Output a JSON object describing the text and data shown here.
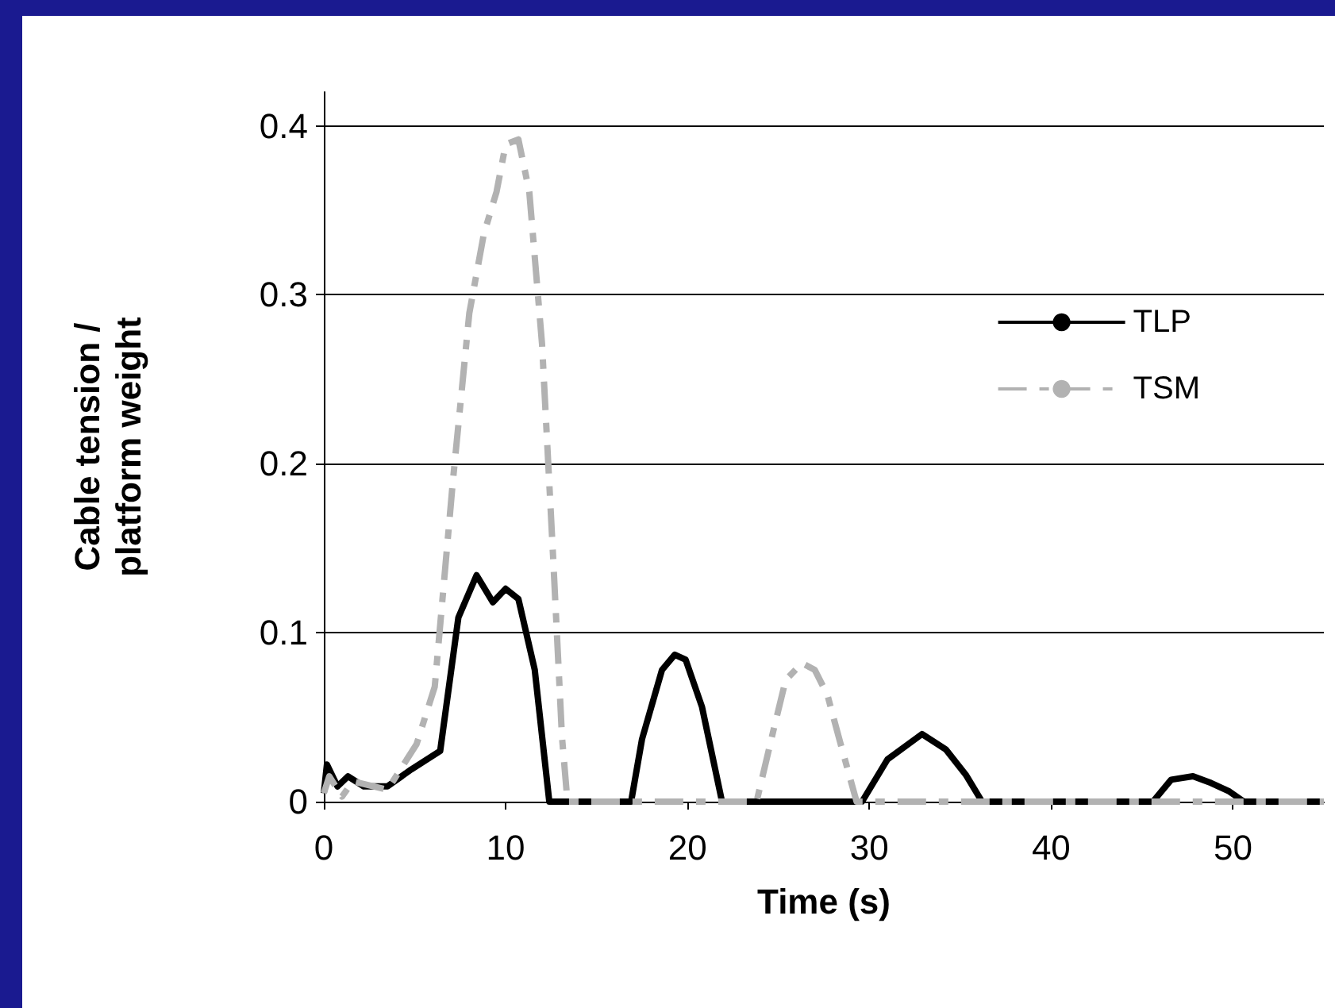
{
  "chart_data": {
    "type": "line",
    "xlabel": "Time (s)",
    "ylabel": "Cable tension / platform weight",
    "xlim": [
      0,
      55
    ],
    "xticks": [
      0,
      10,
      20,
      30,
      40,
      50
    ],
    "ylim": [
      0,
      0.42
    ],
    "yticks": [
      0,
      0.1,
      0.2,
      0.3,
      0.4
    ],
    "grid": "y",
    "legend": "top right",
    "marker": "none",
    "series": [
      {
        "name": "TLP",
        "color": "#000000",
        "line_style": "solid",
        "x": [
          0,
          0.17,
          0.75,
          1.33,
          2.2,
          3.5,
          4.8,
          6.4,
          7.4,
          8.4,
          9.3,
          10.0,
          10.7,
          11.6,
          12.4,
          16.9,
          17.5,
          18.6,
          19.3,
          19.9,
          20.8,
          21.9,
          29.6,
          31.0,
          32.9,
          34.2,
          35.3,
          36.2,
          45.6,
          46.6,
          47.8,
          48.8,
          49.8,
          50.6,
          55
        ],
        "values": [
          0.005,
          0.022,
          0.009,
          0.015,
          0.009,
          0.009,
          0.019,
          0.03,
          0.109,
          0.134,
          0.118,
          0.126,
          0.12,
          0.078,
          0,
          0,
          0.037,
          0.078,
          0.087,
          0.084,
          0.056,
          0,
          0,
          0.025,
          0.04,
          0.031,
          0.016,
          0,
          0,
          0.013,
          0.015,
          0.011,
          0.006,
          0,
          0
        ]
      },
      {
        "name": "TSM",
        "color": "#b2b2b2",
        "line_style": "dashed",
        "x": [
          0,
          0.3,
          1.0,
          1.6,
          3.5,
          5.1,
          6.1,
          7.1,
          8.0,
          8.8,
          9.5,
          10.0,
          10.7,
          11.3,
          12.0,
          12.6,
          13.1,
          13.4,
          23.8,
          24.7,
          25.4,
          26.3,
          27.0,
          27.7,
          28.4,
          29.3,
          55
        ],
        "values": [
          0.005,
          0.015,
          0.003,
          0.012,
          0.007,
          0.034,
          0.068,
          0.19,
          0.289,
          0.336,
          0.361,
          0.389,
          0.392,
          0.361,
          0.271,
          0.147,
          0.038,
          0,
          0,
          0.041,
          0.072,
          0.082,
          0.078,
          0.063,
          0.035,
          0,
          0
        ]
      }
    ]
  }
}
